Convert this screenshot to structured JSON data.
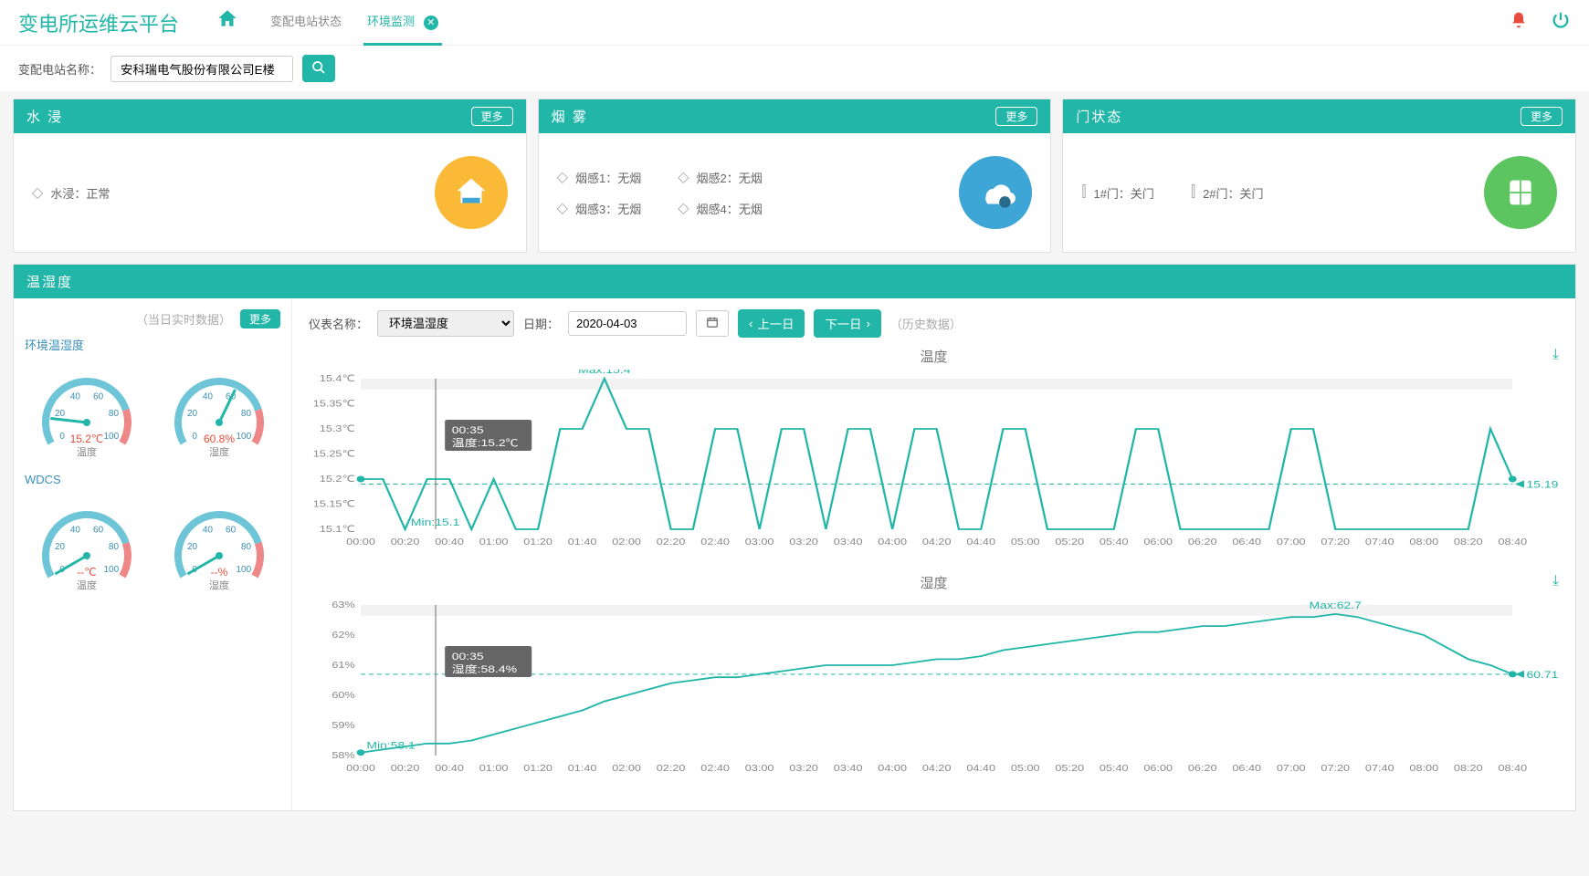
{
  "app": {
    "title": "变电所运维云平台"
  },
  "tabs": {
    "t1": "变配电站状态",
    "t2": "环境监测"
  },
  "search": {
    "label": "变配电站名称：",
    "value": "安科瑞电气股份有限公司E楼"
  },
  "panels": {
    "water": {
      "title": "水 浸",
      "more": "更多",
      "item": "水浸：正常",
      "icon_bg": "#fbb938"
    },
    "smoke": {
      "title": "烟 雾",
      "more": "更多",
      "s1": "烟感1：无烟",
      "s2": "烟感2：无烟",
      "s3": "烟感3：无烟",
      "s4": "烟感4：无烟",
      "icon_bg": "#3ea5d7"
    },
    "door": {
      "title": "门状态",
      "more": "更多",
      "d1": "1#门：关门",
      "d2": "2#门：关门",
      "icon_bg": "#5dc560"
    }
  },
  "temp": {
    "title": "温湿度",
    "realtime_hint": "（当日实时数据）",
    "more": "更多",
    "group1": "环境温湿度",
    "group2": "WDCS",
    "gauges": {
      "g1": {
        "value": "15.2℃",
        "label": "温度",
        "pct": 15.2
      },
      "g2": {
        "value": "60.8%",
        "label": "湿度",
        "pct": 60.8
      },
      "g3": {
        "value": "--℃",
        "label": "温度",
        "pct": 0
      },
      "g4": {
        "value": "--%",
        "label": "湿度",
        "pct": 0
      }
    },
    "ticks": {
      "t0": "0",
      "t20": "20",
      "t40": "40",
      "t60": "60",
      "t80": "80",
      "t100": "100"
    }
  },
  "controls": {
    "meter_label": "仪表名称：",
    "meter_value": "环境温湿度",
    "date_label": "日期：",
    "date_value": "2020-04-03",
    "prev": "上一日",
    "next": "下一日",
    "hist_hint": "（历史数据）"
  },
  "chart1": {
    "title": "温度",
    "max_label": "Max:15.4",
    "min_label": "Min:15.1",
    "end_label": "15.19",
    "tooltip_time": "00:35",
    "tooltip_val": "温度:15.2℃",
    "ylabels": [
      "15.4℃",
      "15.35℃",
      "15.3℃",
      "15.25℃",
      "15.2℃",
      "15.15℃",
      "15.1℃"
    ],
    "xlabels": [
      "00:00",
      "00:20",
      "00:40",
      "01:00",
      "01:20",
      "01:40",
      "02:00",
      "02:20",
      "02:40",
      "03:00",
      "03:20",
      "03:40",
      "04:00",
      "04:20",
      "04:40",
      "05:00",
      "05:20",
      "05:40",
      "06:00",
      "06:20",
      "06:40",
      "07:00",
      "07:20",
      "07:40",
      "08:00",
      "08:20",
      "08:40"
    ],
    "line_color": "#21b6a8",
    "series": [
      15.2,
      15.2,
      15.1,
      15.2,
      15.2,
      15.1,
      15.2,
      15.1,
      15.1,
      15.3,
      15.3,
      15.4,
      15.3,
      15.3,
      15.1,
      15.1,
      15.3,
      15.3,
      15.1,
      15.3,
      15.3,
      15.1,
      15.3,
      15.3,
      15.1,
      15.3,
      15.3,
      15.1,
      15.1,
      15.3,
      15.3,
      15.1,
      15.1,
      15.1,
      15.1,
      15.3,
      15.3,
      15.1,
      15.1,
      15.1,
      15.1,
      15.1,
      15.3,
      15.3,
      15.1,
      15.1,
      15.1,
      15.1,
      15.1,
      15.1,
      15.1,
      15.3,
      15.2
    ]
  },
  "chart2": {
    "title": "湿度",
    "max_label": "Max:62.7",
    "min_label": "Min:58.1",
    "end_label": "60.71",
    "tooltip_time": "00:35",
    "tooltip_val": "湿度:58.4%",
    "ylabels": [
      "63%",
      "62%",
      "61%",
      "60%",
      "59%",
      "58%"
    ],
    "xlabels": [
      "00:00",
      "00:20",
      "00:40",
      "01:00",
      "01:20",
      "01:40",
      "02:00",
      "02:20",
      "02:40",
      "03:00",
      "03:20",
      "03:40",
      "04:00",
      "04:20",
      "04:40",
      "05:00",
      "05:20",
      "05:40",
      "06:00",
      "06:20",
      "06:40",
      "07:00",
      "07:20",
      "07:40",
      "08:00",
      "08:20",
      "08:40"
    ],
    "line_color": "#21b6a8",
    "series": [
      58.1,
      58.2,
      58.3,
      58.4,
      58.4,
      58.5,
      58.7,
      58.9,
      59.1,
      59.3,
      59.5,
      59.8,
      60.0,
      60.2,
      60.4,
      60.5,
      60.6,
      60.6,
      60.7,
      60.8,
      60.9,
      61.0,
      61.0,
      61.0,
      61.0,
      61.1,
      61.2,
      61.2,
      61.3,
      61.5,
      61.6,
      61.7,
      61.8,
      61.9,
      62.0,
      62.1,
      62.1,
      62.2,
      62.3,
      62.3,
      62.4,
      62.5,
      62.6,
      62.6,
      62.7,
      62.6,
      62.4,
      62.2,
      62.0,
      61.6,
      61.2,
      61.0,
      60.7
    ]
  }
}
